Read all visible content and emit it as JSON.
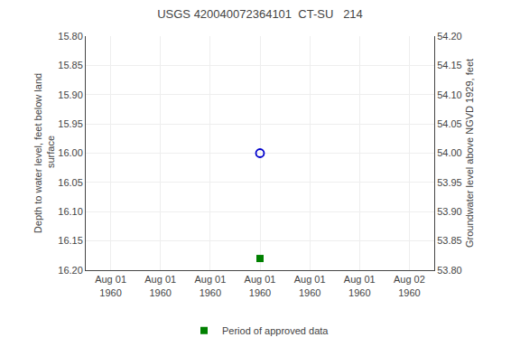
{
  "chart_data": {
    "type": "scatter",
    "title": "USGS 420040072364101  CT-SU   214",
    "ylabel": "Depth to water level, feet below land\n surface",
    "y2label": "Groundwater level above NGVD 1929, feet",
    "categories": [
      "Aug 01\n1960",
      "Aug 01\n1960",
      "Aug 01\n1960",
      "Aug 01\n1960",
      "Aug 01\n1960",
      "Aug 01\n1960",
      "Aug 02\n1960"
    ],
    "series": [
      {
        "color": "#0000cc",
        "marker": "circle-open",
        "values": [
          null,
          null,
          null,
          16.0,
          null,
          null,
          null
        ]
      },
      {
        "name": "Period of approved data",
        "color": "#008000",
        "marker": "square",
        "values": [
          null,
          null,
          null,
          16.18,
          null,
          null,
          null
        ]
      }
    ],
    "ylim": [
      16.2,
      15.8
    ],
    "yticks": [
      {
        "value": 15.8,
        "label": "15.80"
      },
      {
        "value": 15.85,
        "label": "15.85"
      },
      {
        "value": 15.9,
        "label": "15.90"
      },
      {
        "value": 15.95,
        "label": "15.95"
      },
      {
        "value": 16.0,
        "label": "16.00"
      },
      {
        "value": 16.05,
        "label": "16.05"
      },
      {
        "value": 16.1,
        "label": "16.10"
      },
      {
        "value": 16.15,
        "label": "16.15"
      },
      {
        "value": 16.2,
        "label": "16.20"
      }
    ],
    "y2lim": [
      53.8,
      54.2
    ],
    "y2ticks": [
      {
        "value": 53.8,
        "label": "53.80"
      },
      {
        "value": 53.85,
        "label": "53.85"
      },
      {
        "value": 53.9,
        "label": "53.90"
      },
      {
        "value": 53.95,
        "label": "53.95"
      },
      {
        "value": 54.0,
        "label": "54.00"
      },
      {
        "value": 54.05,
        "label": "54.05"
      },
      {
        "value": 54.1,
        "label": "54.10"
      },
      {
        "value": 54.15,
        "label": "54.15"
      },
      {
        "value": 54.2,
        "label": "54.20"
      }
    ],
    "grid": true,
    "legend": "bottom"
  }
}
